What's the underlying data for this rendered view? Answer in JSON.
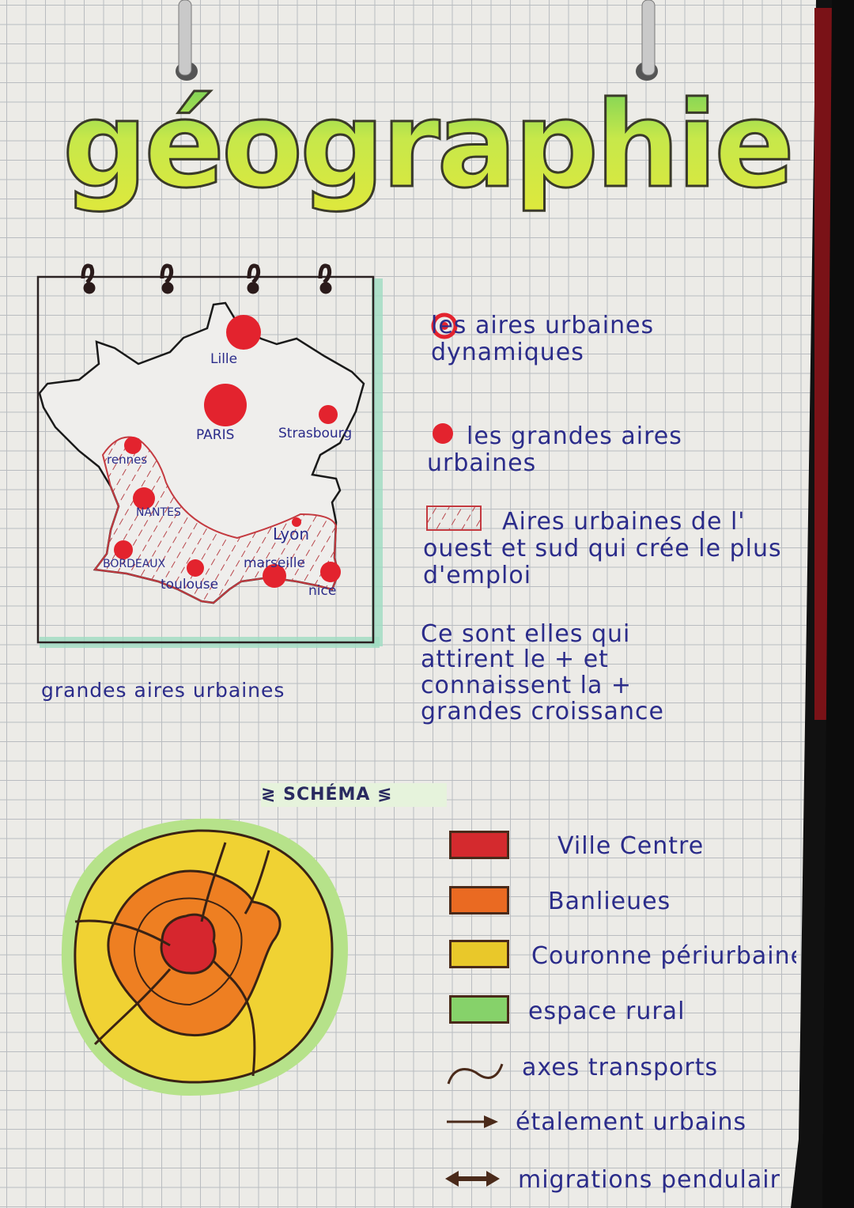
{
  "title": "géographie",
  "map": {
    "caption": "grandes aires urbaines",
    "cities": [
      "Lille",
      "PARIS",
      "Strasbourg",
      "rennes",
      "NANTES",
      "BORDEAUX",
      "toulouse",
      "Lyon",
      "marseille",
      "nice"
    ]
  },
  "legend_map": [
    {
      "symbol": "target-dot",
      "text": "les aires urbaines dynamiques"
    },
    {
      "symbol": "red-dot",
      "text": "les grandes aires urbaines"
    },
    {
      "symbol": "hatched-box",
      "text": "Aires urbaines de l' ouest et sud qui crée le plus d'emploi"
    }
  ],
  "note": [
    "Ce sont elles qui",
    "attirent le + et",
    "connaissent la +",
    "grandes croissance"
  ],
  "schema": {
    "heading": "SCHÉMA",
    "legend": [
      {
        "color": "#d42a2e",
        "text": "Ville Centre"
      },
      {
        "color": "#ea6a22",
        "text": "Banlieues"
      },
      {
        "color": "#e9c82a",
        "text": "Couronne périurbaine"
      },
      {
        "color": "#86d26a",
        "text": "espace rural"
      },
      {
        "symbol": "wave",
        "text": "axes transports"
      },
      {
        "symbol": "arrow",
        "text": "étalement urbains"
      },
      {
        "symbol": "double-arrow",
        "text": "migrations pendulair"
      }
    ]
  }
}
